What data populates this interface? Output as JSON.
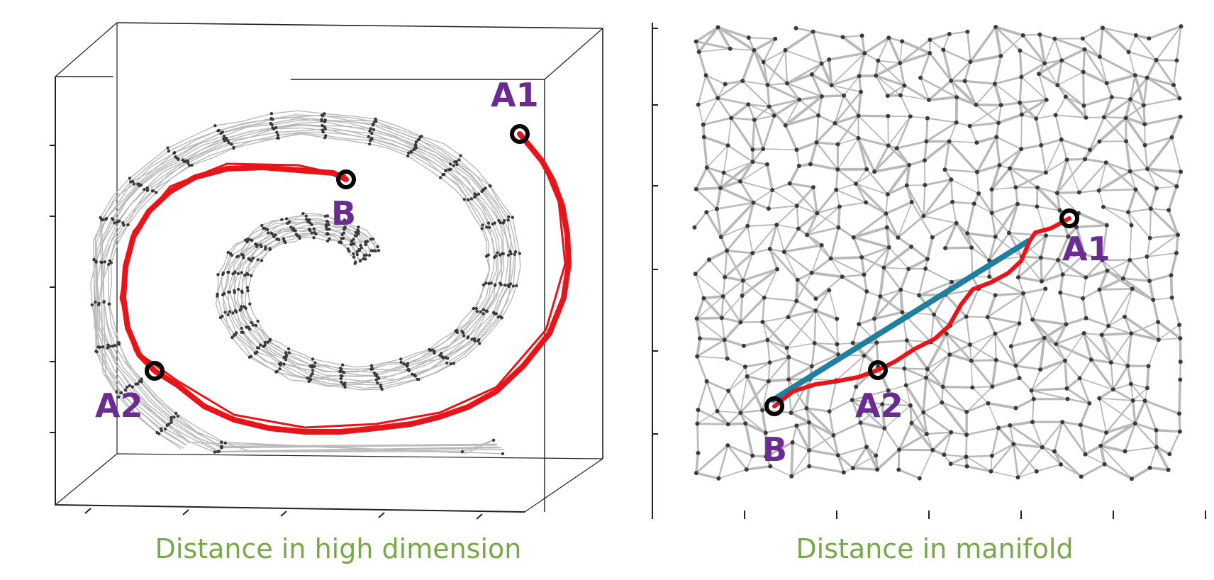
{
  "colors": {
    "mesh": "#b9b9b9",
    "node": "#3a3a3a",
    "path_red": "#e8141a",
    "euclid_blue": "#1f7f9f",
    "label_purple": "#6a2c91",
    "caption_green": "#78a84a",
    "frame": "#222222"
  },
  "left_panel": {
    "labels": {
      "a1": "A1",
      "b": "B",
      "a2": "A2"
    },
    "caption": "Distance in high dimension"
  },
  "right_panel": {
    "labels": {
      "a1": "A1",
      "a2": "A2",
      "b": "B"
    },
    "caption": "Distance in manifold"
  }
}
